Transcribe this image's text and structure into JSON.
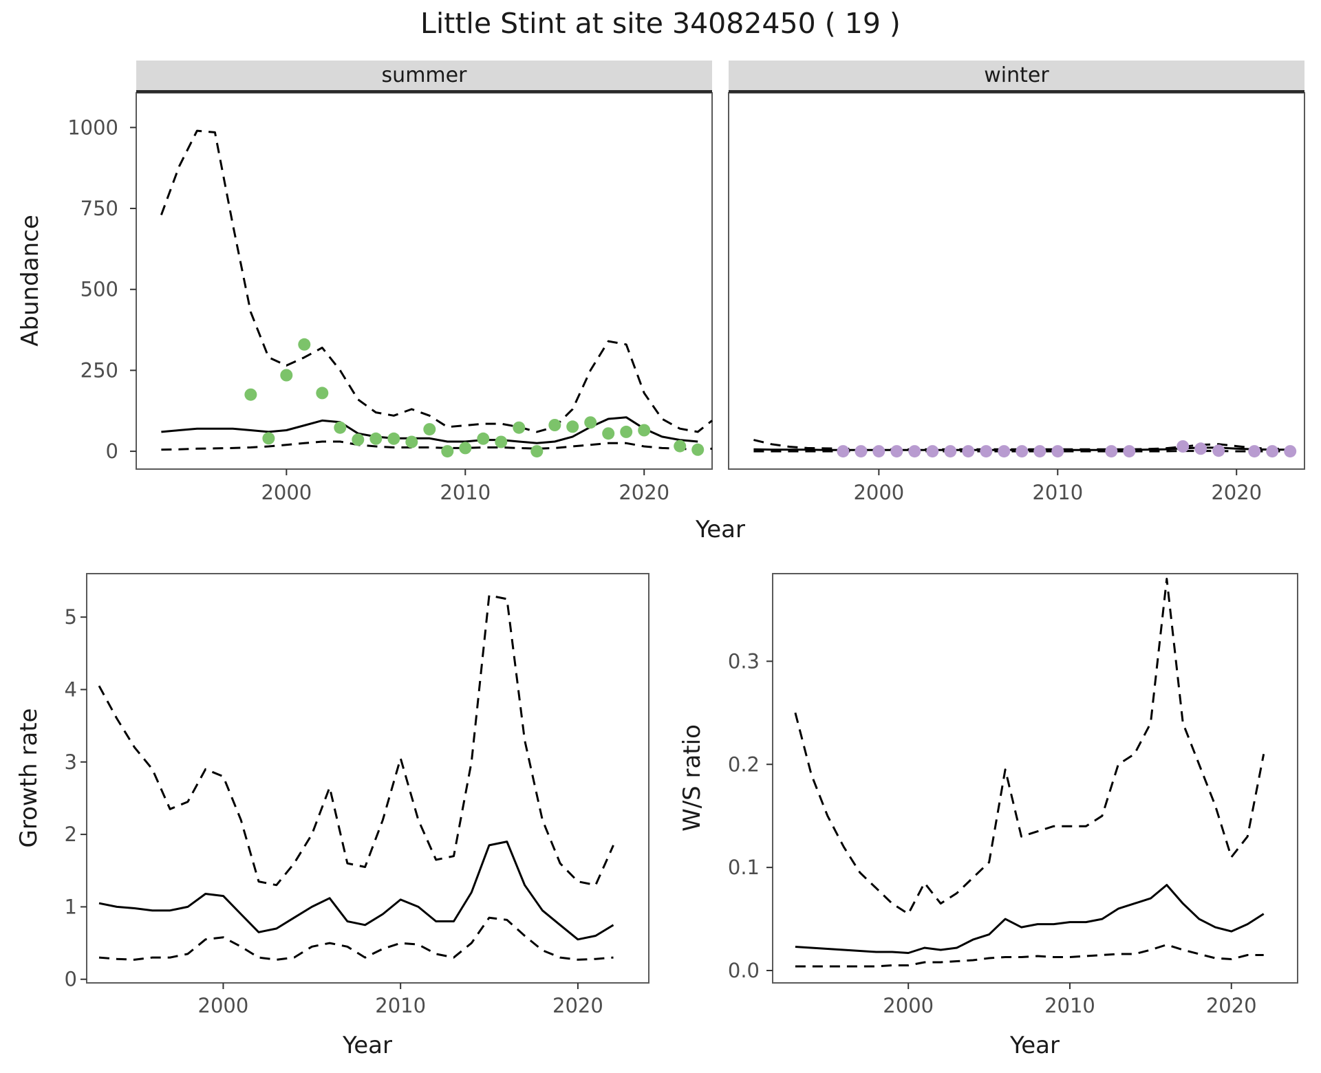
{
  "title": "Little Stint at site 34082450 ( 19 )",
  "facets": [
    {
      "label": "summer"
    },
    {
      "label": "winter"
    }
  ],
  "axis_titles": {
    "year": "Year",
    "abundance": "Abundance",
    "growth_rate": "Growth rate",
    "ws_ratio": "W/S ratio"
  },
  "colors": {
    "summer_points": "#7cc36a",
    "winter_points": "#b89bd0",
    "fit_line": "#000000",
    "ci_line": "#000000",
    "strip_bg": "#d9d9d9",
    "panel_border": "#595959",
    "tick_text": "#4d4d4d"
  },
  "chart_data": [
    {
      "id": "abundance-summer",
      "type": "line",
      "facet": "summer",
      "xlabel": "Year",
      "ylabel": "Abundance",
      "xlim": [
        1991.6,
        2023.8
      ],
      "ylim": [
        -55,
        1107
      ],
      "xticks": [
        2000,
        2010,
        2020
      ],
      "xtick_labels": [
        "2000",
        "2010",
        "2020"
      ],
      "yticks": [
        0,
        250,
        500,
        750,
        1000
      ],
      "ytick_labels": [
        "0",
        "250",
        "500",
        "750",
        "1000"
      ],
      "show_yticks": true,
      "grid": false,
      "series": [
        {
          "name": "upper_ci",
          "style": "dashed",
          "x": [
            1993,
            1994,
            1995,
            1996,
            1997,
            1998,
            1999,
            2000,
            2001,
            2002,
            2003,
            2004,
            2005,
            2006,
            2007,
            2008,
            2009,
            2010,
            2011,
            2012,
            2013,
            2014,
            2015,
            2016,
            2017,
            2018,
            2019,
            2020,
            2021,
            2022,
            2023,
            2023.8
          ],
          "y": [
            730,
            880,
            990,
            985,
            700,
            430,
            290,
            265,
            290,
            320,
            250,
            160,
            120,
            110,
            130,
            110,
            75,
            80,
            85,
            85,
            75,
            60,
            75,
            130,
            250,
            340,
            330,
            180,
            100,
            70,
            60,
            95
          ]
        },
        {
          "name": "fit_mean",
          "style": "solid",
          "x": [
            1993,
            1994,
            1995,
            1996,
            1997,
            1998,
            1999,
            2000,
            2001,
            2002,
            2003,
            2004,
            2005,
            2006,
            2007,
            2008,
            2009,
            2010,
            2011,
            2012,
            2013,
            2014,
            2015,
            2016,
            2017,
            2018,
            2019,
            2020,
            2021,
            2022,
            2023
          ],
          "y": [
            60,
            65,
            70,
            70,
            70,
            65,
            60,
            65,
            80,
            95,
            90,
            55,
            45,
            40,
            40,
            40,
            30,
            30,
            35,
            35,
            30,
            25,
            30,
            45,
            75,
            100,
            105,
            70,
            45,
            35,
            30
          ]
        },
        {
          "name": "lower_ci",
          "style": "dashed",
          "x": [
            1993,
            1994,
            1995,
            1996,
            1997,
            1998,
            1999,
            2000,
            2001,
            2002,
            2003,
            2004,
            2005,
            2006,
            2007,
            2008,
            2009,
            2010,
            2011,
            2012,
            2013,
            2014,
            2015,
            2016,
            2017,
            2018,
            2019,
            2020,
            2021,
            2022,
            2023,
            2023.8
          ],
          "y": [
            5,
            6,
            8,
            9,
            10,
            12,
            15,
            20,
            25,
            30,
            30,
            20,
            15,
            12,
            12,
            12,
            10,
            10,
            12,
            12,
            10,
            8,
            10,
            15,
            20,
            25,
            25,
            15,
            10,
            8,
            5,
            8
          ]
        }
      ],
      "points": {
        "name": "observed-counts-summer",
        "color": "#7cc36a",
        "x": [
          1998,
          1999,
          2000,
          2001,
          2002,
          2003,
          2004,
          2005,
          2006,
          2007,
          2008,
          2009,
          2010,
          2011,
          2012,
          2013,
          2014,
          2015,
          2016,
          2017,
          2018,
          2019,
          2020,
          2022,
          2023
        ],
        "y": [
          175,
          40,
          235,
          330,
          180,
          73,
          36,
          39,
          39,
          29,
          68,
          0,
          10,
          39,
          29,
          73,
          0,
          81,
          76,
          89,
          55,
          60,
          65,
          16,
          5
        ]
      }
    },
    {
      "id": "abundance-winter",
      "type": "line",
      "facet": "winter",
      "xlabel": "Year",
      "ylabel": "Abundance",
      "xlim": [
        1991.6,
        2023.8
      ],
      "ylim": [
        -55,
        1107
      ],
      "xticks": [
        2000,
        2010,
        2020
      ],
      "xtick_labels": [
        "2000",
        "2010",
        "2020"
      ],
      "yticks": [
        0,
        250,
        500,
        750,
        1000
      ],
      "ytick_labels": [
        "0",
        "250",
        "500",
        "750",
        "1000"
      ],
      "show_yticks": false,
      "grid": false,
      "series": [
        {
          "name": "upper_ci",
          "style": "dashed",
          "x": [
            1993,
            1994,
            1995,
            1996,
            1997,
            1998,
            1999,
            2000,
            2001,
            2002,
            2003,
            2004,
            2005,
            2006,
            2007,
            2008,
            2009,
            2010,
            2011,
            2012,
            2013,
            2014,
            2015,
            2016,
            2017,
            2018,
            2019,
            2020,
            2021,
            2022,
            2023
          ],
          "y": [
            35,
            22,
            14,
            10,
            9,
            8,
            7,
            7,
            6,
            6,
            6,
            6,
            6,
            6,
            6,
            6,
            6,
            6,
            6,
            6,
            6,
            6,
            7,
            9,
            14,
            20,
            22,
            16,
            10,
            8,
            7
          ]
        },
        {
          "name": "fit_mean",
          "style": "solid",
          "x": [
            1993,
            1994,
            1995,
            1996,
            1997,
            1998,
            1999,
            2000,
            2001,
            2002,
            2003,
            2004,
            2005,
            2006,
            2007,
            2008,
            2009,
            2010,
            2011,
            2012,
            2013,
            2014,
            2015,
            2016,
            2017,
            2018,
            2019,
            2020,
            2021,
            2022,
            2023
          ],
          "y": [
            6,
            5,
            5,
            5,
            4,
            4,
            4,
            4,
            4,
            4,
            4,
            4,
            4,
            4,
            4,
            4,
            4,
            4,
            4,
            4,
            4,
            4,
            5,
            6,
            9,
            11,
            11,
            8,
            6,
            5,
            5
          ]
        },
        {
          "name": "lower_ci",
          "style": "dashed",
          "x": [
            1993,
            1994,
            1995,
            1996,
            1997,
            1998,
            1999,
            2000,
            2001,
            2002,
            2003,
            2004,
            2005,
            2006,
            2007,
            2008,
            2009,
            2010,
            2011,
            2012,
            2013,
            2014,
            2015,
            2016,
            2017,
            2018,
            2019,
            2020,
            2021,
            2022,
            2023
          ],
          "y": [
            0,
            0,
            0,
            0,
            0,
            0,
            0,
            0,
            0,
            0,
            0,
            0,
            0,
            0,
            0,
            0,
            0,
            0,
            0,
            0,
            0,
            0,
            0,
            0,
            1,
            1,
            1,
            0,
            0,
            0,
            0
          ]
        }
      ],
      "points": {
        "name": "observed-counts-winter",
        "color": "#b89bd0",
        "x": [
          1998,
          1999,
          2000,
          2001,
          2002,
          2003,
          2004,
          2005,
          2006,
          2007,
          2008,
          2009,
          2010,
          2013,
          2014,
          2017,
          2018,
          2019,
          2021,
          2022,
          2023
        ],
        "y": [
          0,
          0,
          0,
          0,
          0,
          0,
          0,
          0,
          0,
          0,
          0,
          0,
          0,
          0,
          0,
          15,
          8,
          2,
          0,
          0,
          0
        ]
      }
    },
    {
      "id": "growth-rate",
      "type": "line",
      "xlabel": "Year",
      "ylabel": "Growth rate",
      "xlim": [
        1992.3,
        2024.0
      ],
      "ylim": [
        -0.05,
        5.6
      ],
      "xticks": [
        2000,
        2010,
        2020
      ],
      "xtick_labels": [
        "2000",
        "2010",
        "2020"
      ],
      "yticks": [
        0,
        1,
        2,
        3,
        4,
        5
      ],
      "ytick_labels": [
        "0",
        "1",
        "2",
        "3",
        "4",
        "5"
      ],
      "show_yticks": true,
      "grid": false,
      "series": [
        {
          "name": "upper_ci",
          "style": "dashed",
          "x": [
            1993,
            1994,
            1995,
            1996,
            1997,
            1998,
            1999,
            2000,
            2001,
            2002,
            2003,
            2004,
            2005,
            2006,
            2007,
            2008,
            2009,
            2010,
            2011,
            2012,
            2013,
            2014,
            2015,
            2016,
            2017,
            2018,
            2019,
            2020,
            2021,
            2022
          ],
          "y": [
            4.05,
            3.6,
            3.2,
            2.9,
            2.35,
            2.45,
            2.9,
            2.8,
            2.2,
            1.35,
            1.3,
            1.6,
            2.0,
            2.65,
            1.6,
            1.55,
            2.2,
            3.05,
            2.2,
            1.65,
            1.7,
            3.0,
            5.3,
            5.25,
            3.3,
            2.2,
            1.6,
            1.35,
            1.3,
            1.85
          ]
        },
        {
          "name": "fit_mean",
          "style": "solid",
          "x": [
            1993,
            1994,
            1995,
            1996,
            1997,
            1998,
            1999,
            2000,
            2001,
            2002,
            2003,
            2004,
            2005,
            2006,
            2007,
            2008,
            2009,
            2010,
            2011,
            2012,
            2013,
            2014,
            2015,
            2016,
            2017,
            2018,
            2019,
            2020,
            2021,
            2022
          ],
          "y": [
            1.05,
            1.0,
            0.98,
            0.95,
            0.95,
            1.0,
            1.18,
            1.15,
            0.9,
            0.65,
            0.7,
            0.85,
            1.0,
            1.12,
            0.8,
            0.75,
            0.9,
            1.1,
            1.0,
            0.8,
            0.8,
            1.2,
            1.85,
            1.9,
            1.3,
            0.95,
            0.75,
            0.55,
            0.6,
            0.75
          ]
        },
        {
          "name": "lower_ci",
          "style": "dashed",
          "x": [
            1993,
            1994,
            1995,
            1996,
            1997,
            1998,
            1999,
            2000,
            2001,
            2002,
            2003,
            2004,
            2005,
            2006,
            2007,
            2008,
            2009,
            2010,
            2011,
            2012,
            2013,
            2014,
            2015,
            2016,
            2017,
            2018,
            2019,
            2020,
            2021,
            2022
          ],
          "y": [
            0.3,
            0.28,
            0.27,
            0.3,
            0.3,
            0.35,
            0.55,
            0.58,
            0.45,
            0.3,
            0.27,
            0.3,
            0.45,
            0.5,
            0.45,
            0.3,
            0.42,
            0.5,
            0.48,
            0.35,
            0.3,
            0.5,
            0.85,
            0.82,
            0.6,
            0.4,
            0.3,
            0.27,
            0.28,
            0.3
          ]
        }
      ]
    },
    {
      "id": "ws-ratio",
      "type": "line",
      "xlabel": "Year",
      "ylabel": "W/S ratio",
      "xlim": [
        1991.6,
        2024.1
      ],
      "ylim": [
        -0.012,
        0.385
      ],
      "xticks": [
        2000,
        2010,
        2020
      ],
      "xtick_labels": [
        "2000",
        "2010",
        "2020"
      ],
      "yticks": [
        0,
        0.1,
        0.2,
        0.3
      ],
      "ytick_labels": [
        "0.0",
        "0.1",
        "0.2",
        "0.3"
      ],
      "show_yticks": true,
      "grid": false,
      "series": [
        {
          "name": "upper_ci",
          "style": "dashed",
          "x": [
            1993,
            1994,
            1995,
            1996,
            1997,
            1998,
            1999,
            2000,
            2001,
            2002,
            2003,
            2004,
            2005,
            2006,
            2007,
            2008,
            2009,
            2010,
            2011,
            2012,
            2013,
            2014,
            2015,
            2016,
            2017,
            2018,
            2019,
            2020,
            2021,
            2022
          ],
          "y": [
            0.25,
            0.19,
            0.15,
            0.12,
            0.095,
            0.08,
            0.065,
            0.055,
            0.085,
            0.065,
            0.075,
            0.09,
            0.105,
            0.195,
            0.13,
            0.135,
            0.14,
            0.14,
            0.14,
            0.15,
            0.2,
            0.21,
            0.24,
            0.38,
            0.24,
            0.2,
            0.16,
            0.11,
            0.13,
            0.21
          ]
        },
        {
          "name": "fit_mean",
          "style": "solid",
          "x": [
            1993,
            1994,
            1995,
            1996,
            1997,
            1998,
            1999,
            2000,
            2001,
            2002,
            2003,
            2004,
            2005,
            2006,
            2007,
            2008,
            2009,
            2010,
            2011,
            2012,
            2013,
            2014,
            2015,
            2016,
            2017,
            2018,
            2019,
            2020,
            2021,
            2022
          ],
          "y": [
            0.023,
            0.022,
            0.021,
            0.02,
            0.019,
            0.018,
            0.018,
            0.017,
            0.022,
            0.02,
            0.022,
            0.03,
            0.035,
            0.05,
            0.042,
            0.045,
            0.045,
            0.047,
            0.047,
            0.05,
            0.06,
            0.065,
            0.07,
            0.083,
            0.065,
            0.05,
            0.042,
            0.038,
            0.045,
            0.055
          ]
        },
        {
          "name": "lower_ci",
          "style": "dashed",
          "x": [
            1993,
            1994,
            1995,
            1996,
            1997,
            1998,
            1999,
            2000,
            2001,
            2002,
            2003,
            2004,
            2005,
            2006,
            2007,
            2008,
            2009,
            2010,
            2011,
            2012,
            2013,
            2014,
            2015,
            2016,
            2017,
            2018,
            2019,
            2020,
            2021,
            2022
          ],
          "y": [
            0.004,
            0.004,
            0.004,
            0.004,
            0.004,
            0.004,
            0.005,
            0.005,
            0.008,
            0.008,
            0.009,
            0.01,
            0.012,
            0.013,
            0.013,
            0.014,
            0.013,
            0.013,
            0.014,
            0.015,
            0.016,
            0.016,
            0.02,
            0.025,
            0.02,
            0.016,
            0.012,
            0.011,
            0.015,
            0.015
          ]
        }
      ]
    }
  ]
}
